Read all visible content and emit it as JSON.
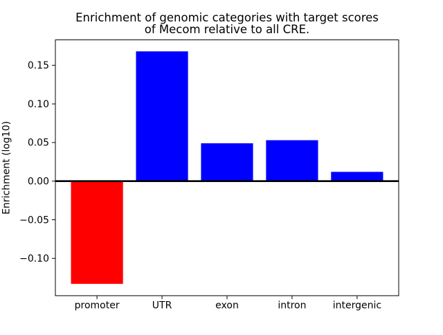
{
  "figure": {
    "background": "#ffffff"
  },
  "chart_data": {
    "type": "bar",
    "title_lines": [
      "Enrichment of genomic categories with target scores",
      "of Mecom relative to all CRE."
    ],
    "categories": [
      "promoter",
      "UTR",
      "exon",
      "intron",
      "intergenic"
    ],
    "values": [
      -0.133,
      0.168,
      0.049,
      0.053,
      0.012
    ],
    "bar_colors": [
      "#ff0000",
      "#0000ff",
      "#0000ff",
      "#0000ff",
      "#0000ff"
    ],
    "positive_color": "#0000ff",
    "negative_color": "#ff0000",
    "xlabel": "",
    "ylabel": "Enrichment (log10)",
    "yticks": [
      0.15,
      0.1,
      0.05,
      0.0,
      -0.05,
      -0.1
    ],
    "ytick_labels": [
      "0.15",
      "0.10",
      "0.05",
      "0.00",
      "−0.05",
      "−0.10"
    ],
    "xlim": [
      -0.64,
      4.64
    ],
    "ylim": [
      -0.1483,
      0.1829
    ],
    "bar_width": 0.8,
    "grid": false,
    "zero_line": true,
    "axis_color": "#000000"
  }
}
